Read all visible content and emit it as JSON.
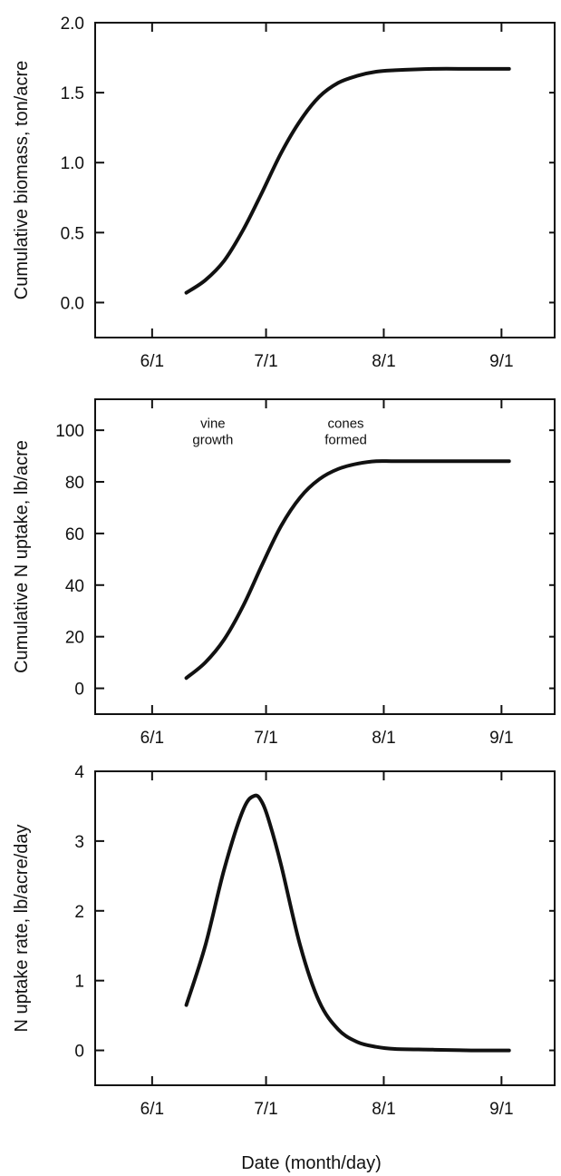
{
  "chart_data": [
    {
      "type": "line",
      "ylabel": "Cumulative biomass, ton/acre",
      "xlabel": "",
      "x_ticks": [
        "6/1",
        "7/1",
        "8/1",
        "9/1"
      ],
      "x_tick_dates": [
        "2000-06-01",
        "2000-07-01",
        "2000-08-01",
        "2000-09-01"
      ],
      "y_ticks": [
        "0.0",
        "0.5",
        "1.0",
        "1.5",
        "2.0"
      ],
      "y_tick_values": [
        0,
        0.5,
        1.0,
        1.5,
        2.0
      ],
      "xlim": [
        "2000-05-17",
        "2000-09-15"
      ],
      "ylim": [
        -0.25,
        2.0
      ],
      "annotations": [],
      "series": [
        {
          "x": [
            "2000-06-10",
            "2000-06-15",
            "2000-06-20",
            "2000-06-25",
            "2000-06-30",
            "2000-07-05",
            "2000-07-10",
            "2000-07-15",
            "2000-07-20",
            "2000-07-25",
            "2000-07-30",
            "2000-08-04",
            "2000-08-14",
            "2000-08-24",
            "2000-09-03"
          ],
          "y": [
            0.07,
            0.16,
            0.3,
            0.52,
            0.79,
            1.07,
            1.3,
            1.47,
            1.57,
            1.62,
            1.65,
            1.66,
            1.67,
            1.67,
            1.67
          ]
        }
      ]
    },
    {
      "type": "line",
      "ylabel": "Cumulative N uptake, lb/acre",
      "xlabel": "",
      "x_ticks": [
        "6/1",
        "7/1",
        "8/1",
        "9/1"
      ],
      "x_tick_dates": [
        "2000-06-01",
        "2000-07-01",
        "2000-08-01",
        "2000-09-01"
      ],
      "y_ticks": [
        "0",
        "20",
        "40",
        "60",
        "80",
        "100"
      ],
      "y_tick_values": [
        0,
        20,
        40,
        60,
        80,
        100
      ],
      "xlim": [
        "2000-05-17",
        "2000-09-15"
      ],
      "ylim": [
        -10,
        112
      ],
      "annotations": [
        {
          "lines": [
            "vine",
            "growth"
          ],
          "x": "2000-06-17",
          "y": 101
        },
        {
          "lines": [
            "cones",
            "formed"
          ],
          "x": "2000-07-22",
          "y": 101
        }
      ],
      "series": [
        {
          "x": [
            "2000-06-10",
            "2000-06-15",
            "2000-06-20",
            "2000-06-25",
            "2000-06-30",
            "2000-07-05",
            "2000-07-10",
            "2000-07-15",
            "2000-07-20",
            "2000-07-25",
            "2000-07-30",
            "2000-08-04",
            "2000-08-14",
            "2000-08-24",
            "2000-09-03"
          ],
          "y": [
            4,
            10,
            19,
            32,
            48,
            63,
            74,
            81,
            85,
            87,
            88,
            88,
            88,
            88,
            88
          ]
        }
      ]
    },
    {
      "type": "line",
      "ylabel": "N uptake rate, lb/acre/day",
      "xlabel": "Date (month/day)",
      "x_ticks": [
        "6/1",
        "7/1",
        "8/1",
        "9/1"
      ],
      "x_tick_dates": [
        "2000-06-01",
        "2000-07-01",
        "2000-08-01",
        "2000-09-01"
      ],
      "y_ticks": [
        "0",
        "1",
        "2",
        "3",
        "4"
      ],
      "y_tick_values": [
        0,
        1,
        2,
        3,
        4
      ],
      "xlim": [
        "2000-05-17",
        "2000-09-15"
      ],
      "ylim": [
        -0.5,
        4.0
      ],
      "annotations": [],
      "series": [
        {
          "x": [
            "2000-06-10",
            "2000-06-15",
            "2000-06-20",
            "2000-06-25",
            "2000-06-28",
            "2000-06-30",
            "2000-07-02",
            "2000-07-05",
            "2000-07-10",
            "2000-07-15",
            "2000-07-20",
            "2000-07-25",
            "2000-07-30",
            "2000-08-04",
            "2000-08-14",
            "2000-08-24",
            "2000-09-03"
          ],
          "y": [
            0.65,
            1.5,
            2.6,
            3.45,
            3.65,
            3.55,
            3.25,
            2.65,
            1.5,
            0.7,
            0.3,
            0.12,
            0.05,
            0.02,
            0.01,
            0.0,
            0.0
          ]
        }
      ]
    }
  ]
}
